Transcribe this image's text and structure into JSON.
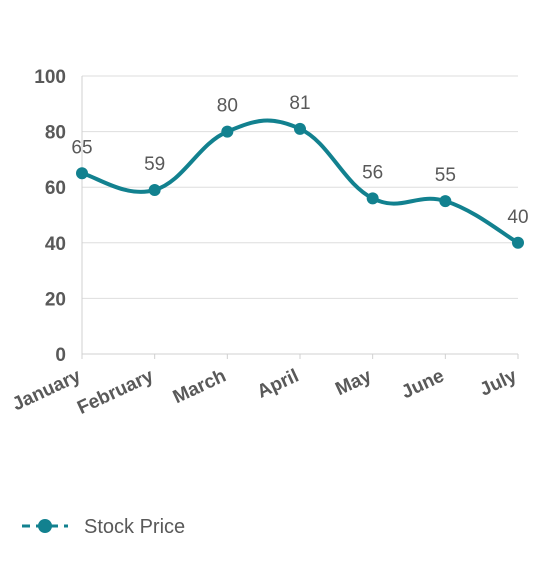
{
  "chart_data": {
    "type": "line",
    "smooth": true,
    "title": "",
    "xlabel": "",
    "ylabel": "",
    "categories": [
      "January",
      "February",
      "March",
      "April",
      "May",
      "June",
      "July"
    ],
    "series": [
      {
        "name": "Stock Price",
        "values": [
          65,
          59,
          80,
          81,
          56,
          55,
          40
        ],
        "color": "#12818f"
      }
    ],
    "ylim": [
      0,
      100
    ],
    "yticks": [
      0,
      20,
      40,
      60,
      80,
      100
    ],
    "grid": true,
    "data_labels": true,
    "legend": {
      "position": "bottom-left"
    }
  }
}
